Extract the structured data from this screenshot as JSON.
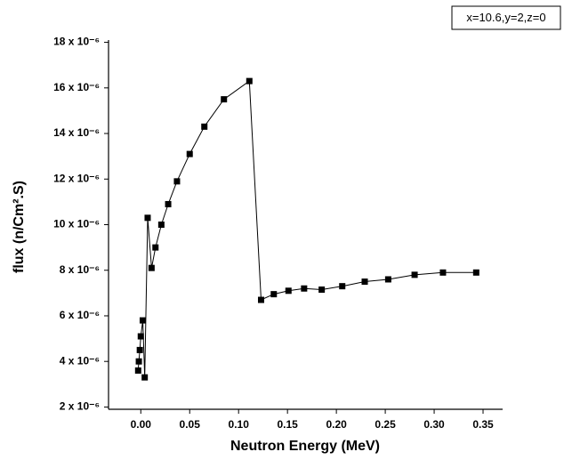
{
  "chart_data": {
    "type": "line",
    "annotation": "x=10.6,y=2,z=0",
    "x_label": "Neutron Energy (MeV)",
    "y_label": "flux (n/Cm².S)",
    "color": "#000000",
    "xlim": [
      -0.033,
      0.37
    ],
    "xticks": [
      {
        "value": 0,
        "label": "0.00"
      },
      0.05,
      {
        "value": 0.1,
        "label": "0.10"
      },
      0.15,
      {
        "value": 0.2,
        "label": "0.20"
      },
      0.25,
      {
        "value": 0.3,
        "label": "0.30"
      },
      0.35
    ],
    "ylim": [
      1.9e-06,
      1.81e-05
    ],
    "yticks": [
      {
        "value": 2e-06,
        "label": "2 x 10⁻⁶"
      },
      {
        "value": 4e-06,
        "label": "4 x 10⁻⁶"
      },
      {
        "value": 6e-06,
        "label": "6 x 10⁻⁶"
      },
      {
        "value": 8e-06,
        "label": "8 x 10⁻⁶"
      },
      {
        "value": 1e-05,
        "label": "10 x 10⁻⁶"
      },
      {
        "value": 1.2e-05,
        "label": "12 x 10⁻⁶"
      },
      {
        "value": 1.4e-05,
        "label": "14 x 10⁻⁶"
      },
      {
        "value": 1.6e-05,
        "label": "16 x 10⁻⁶"
      },
      {
        "value": 1.8e-05,
        "label": "18 x 10⁻⁶"
      }
    ],
    "x": [
      -0.0027,
      -0.002,
      -0.001,
      0.0,
      0.002,
      0.004,
      0.007,
      0.011,
      0.015,
      0.021,
      0.028,
      0.037,
      0.05,
      0.065,
      0.085,
      0.111,
      0.123,
      0.136,
      0.151,
      0.167,
      0.185,
      0.206,
      0.229,
      0.253,
      0.28,
      0.309,
      0.343
    ],
    "values": [
      3.6e-06,
      4e-06,
      4.5e-06,
      5.1e-06,
      5.8e-06,
      3.3e-06,
      1.03e-05,
      8.1e-06,
      9e-06,
      1e-05,
      1.09e-05,
      1.19e-05,
      1.31e-05,
      1.43e-05,
      1.55e-05,
      1.63e-05,
      6.7e-06,
      6.95e-06,
      7.1e-06,
      7.2e-06,
      7.15e-06,
      7.3e-06,
      7.5e-06,
      7.6e-06,
      7.8e-06,
      7.9e-06,
      7.9e-06
    ]
  }
}
